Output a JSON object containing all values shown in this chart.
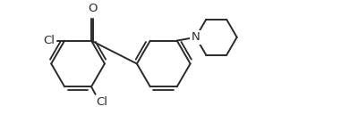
{
  "background": "#ffffff",
  "line_color": "#2a2a2a",
  "line_width": 1.4,
  "font_size": 9.5,
  "fig_width": 4.0,
  "fig_height": 1.38,
  "dpi": 100,
  "xlim": [
    0,
    10
  ],
  "ylim": [
    0,
    3.45
  ]
}
